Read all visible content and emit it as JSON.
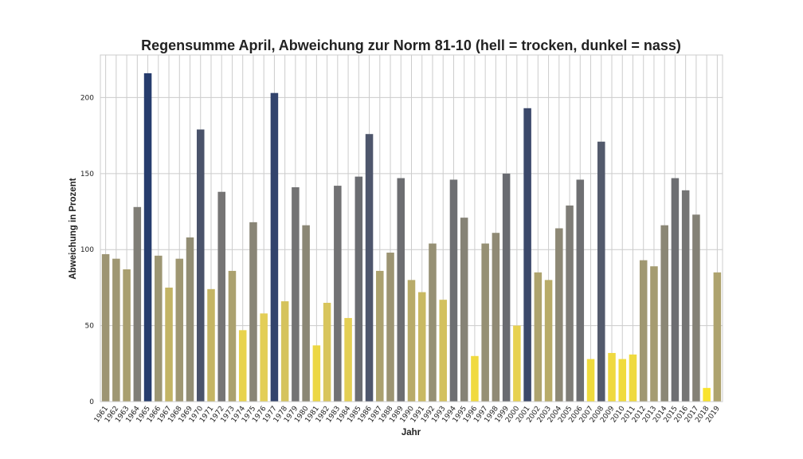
{
  "chart_data": {
    "type": "bar",
    "title": "Regensumme April, Abweichung zur Norm 81-10 (hell = trocken, dunkel = nass)",
    "xlabel": "Jahr",
    "ylabel": "Abweichung in Prozent",
    "ylim": [
      0,
      228
    ],
    "yticks": [
      0,
      50,
      100,
      150,
      200
    ],
    "grid": true,
    "categories": [
      "1961",
      "1962",
      "1963",
      "1964",
      "1965",
      "1966",
      "1967",
      "1968",
      "1969",
      "1970",
      "1971",
      "1972",
      "1973",
      "1974",
      "1975",
      "1976",
      "1977",
      "1978",
      "1979",
      "1980",
      "1981",
      "1982",
      "1983",
      "1984",
      "1985",
      "1986",
      "1987",
      "1988",
      "1989",
      "1990",
      "1991",
      "1992",
      "1993",
      "1994",
      "1995",
      "1996",
      "1997",
      "1998",
      "1999",
      "2000",
      "2001",
      "2002",
      "2003",
      "2004",
      "2005",
      "2006",
      "2007",
      "2008",
      "2009",
      "2010",
      "2011",
      "2012",
      "2013",
      "2014",
      "2015",
      "2016",
      "2017",
      "2018",
      "2019"
    ],
    "values": [
      97,
      94,
      87,
      128,
      216,
      96,
      75,
      94,
      108,
      179,
      74,
      138,
      86,
      47,
      118,
      58,
      203,
      66,
      141,
      116,
      37,
      65,
      142,
      55,
      148,
      176,
      86,
      98,
      147,
      80,
      72,
      104,
      67,
      146,
      121,
      30,
      104,
      111,
      150,
      50,
      193,
      85,
      80,
      114,
      129,
      146,
      28,
      171,
      32,
      28,
      31,
      93,
      89,
      116,
      147,
      139,
      123,
      9,
      85
    ],
    "colormap": {
      "stops": [
        {
          "value": 0,
          "color": "#fde725"
        },
        {
          "value": 60,
          "color": "#e2cd58"
        },
        {
          "value": 90,
          "color": "#a39a72"
        },
        {
          "value": 130,
          "color": "#7e7c77"
        },
        {
          "value": 165,
          "color": "#5a5f6d"
        },
        {
          "value": 190,
          "color": "#3e4a6a"
        },
        {
          "value": 220,
          "color": "#223a6e"
        }
      ]
    }
  }
}
